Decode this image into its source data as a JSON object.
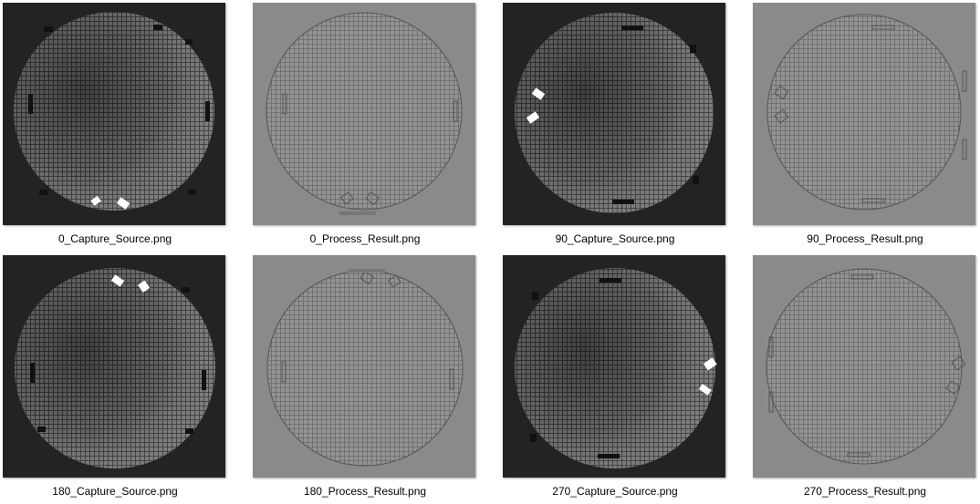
{
  "files": [
    {
      "name": "0_Capture_Source.png",
      "kind": "source",
      "angle": 0
    },
    {
      "name": "0_Process_Result.png",
      "kind": "result",
      "angle": 0
    },
    {
      "name": "90_Capture_Source.png",
      "kind": "source",
      "angle": 90
    },
    {
      "name": "90_Process_Result.png",
      "kind": "result",
      "angle": 90
    },
    {
      "name": "180_Capture_Source.png",
      "kind": "source",
      "angle": 180
    },
    {
      "name": "180_Process_Result.png",
      "kind": "result",
      "angle": 180
    },
    {
      "name": "270_Capture_Source.png",
      "kind": "source",
      "angle": 270
    },
    {
      "name": "270_Process_Result.png",
      "kind": "result",
      "angle": 270
    }
  ],
  "colors": {
    "source_background": "#232323",
    "source_wafer": "#6e6e6e",
    "result_background": "#8a8a8a",
    "result_wafer": "#8f8f8f",
    "marker": "#ffffff"
  }
}
